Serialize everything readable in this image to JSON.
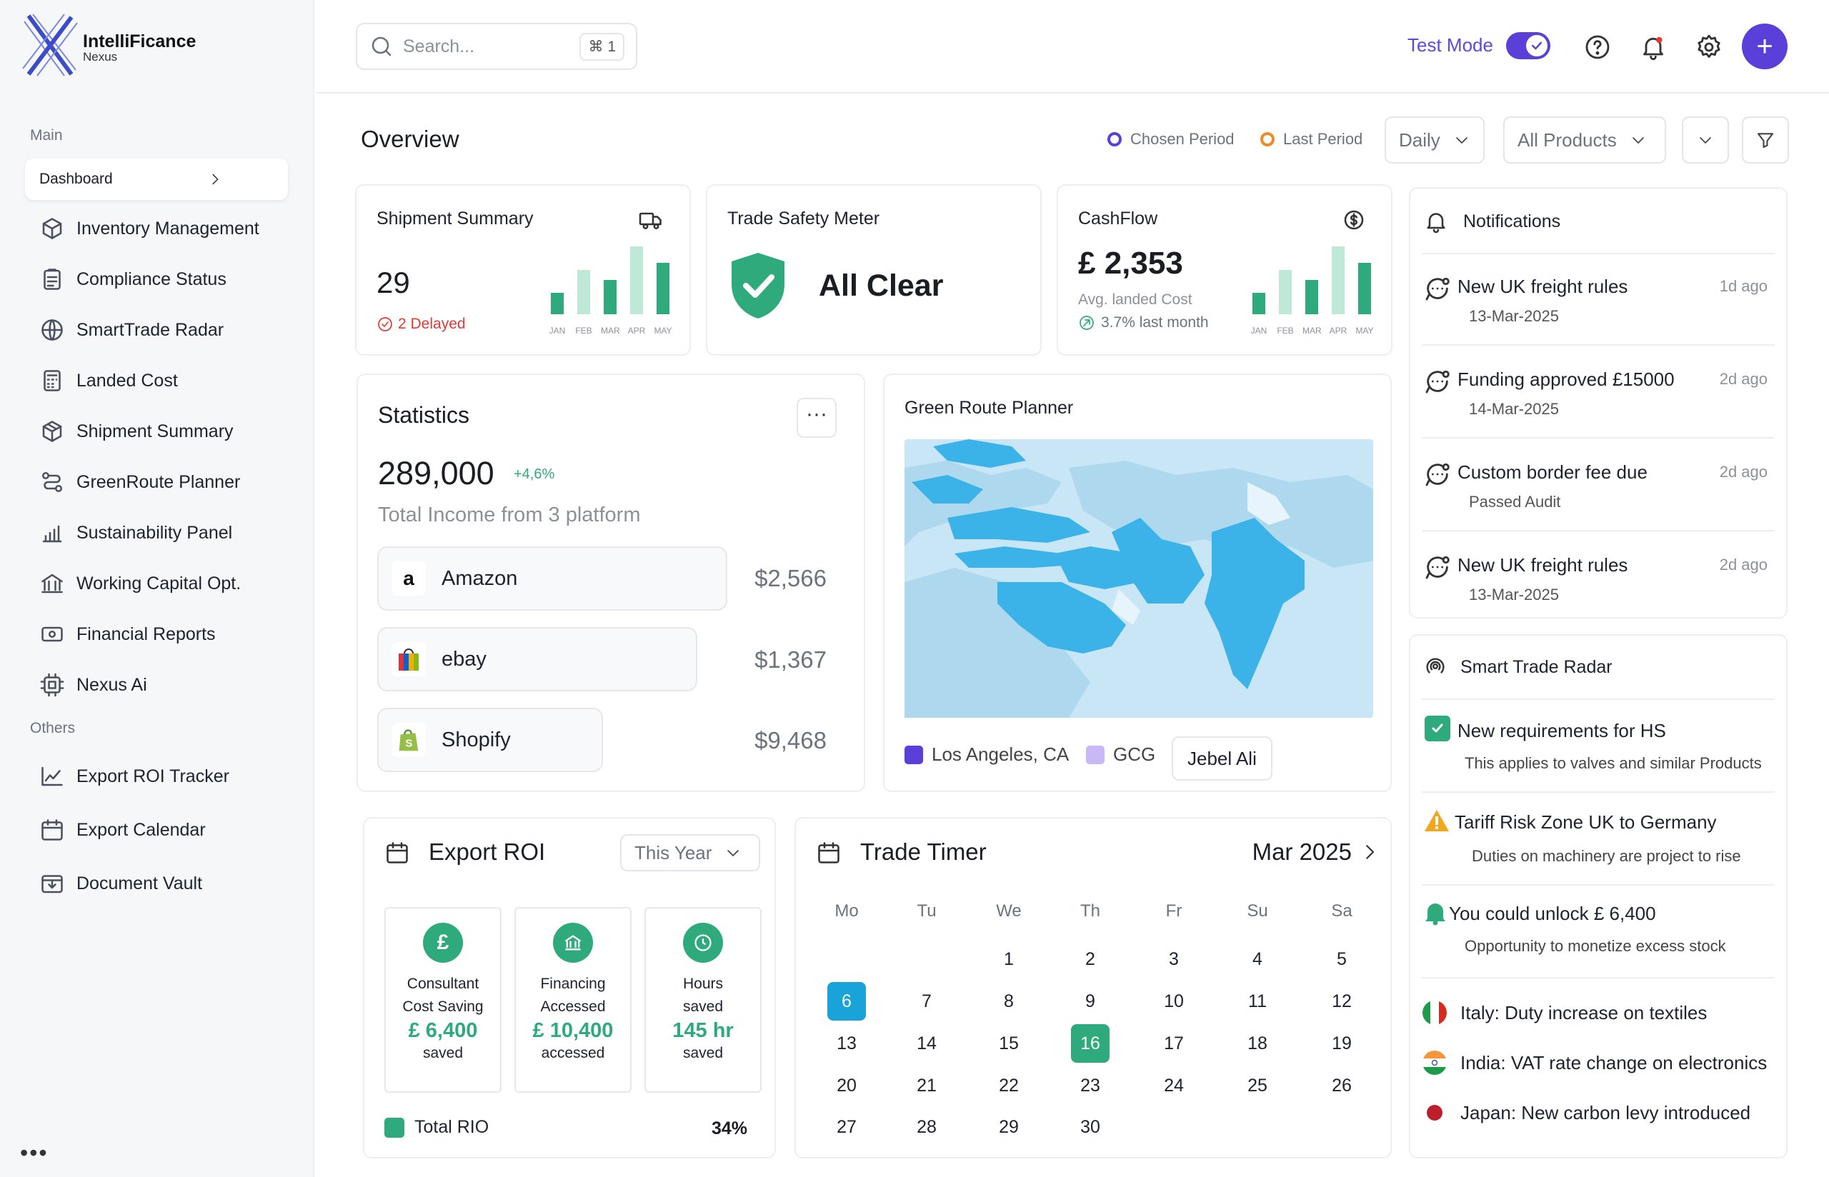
{
  "brand": {
    "name": "IntelliFicance",
    "sub": "Nexus"
  },
  "sidebar": {
    "main_label": "Main",
    "dashboard": "Dashboard",
    "items": [
      {
        "label": "Inventory Management",
        "icon": "box-icon"
      },
      {
        "label": "Compliance Status",
        "icon": "clipboard-icon"
      },
      {
        "label": "SmartTrade Radar",
        "icon": "globe-icon"
      },
      {
        "label": "Landed Cost",
        "icon": "calculator-icon"
      },
      {
        "label": "Shipment Summary",
        "icon": "package-icon"
      },
      {
        "label": "GreenRoute Planner",
        "icon": "route-icon"
      },
      {
        "label": "Sustainability Panel",
        "icon": "bar-chart-icon"
      },
      {
        "label": "Working Capital Opt.",
        "icon": "bank-icon"
      },
      {
        "label": "Financial Reports",
        "icon": "money-icon"
      },
      {
        "label": "Nexus Ai",
        "icon": "ai-icon"
      }
    ],
    "others_label": "Others",
    "others": [
      {
        "label": "Export ROI Tracker",
        "icon": "line-chart-icon"
      },
      {
        "label": "Export Calendar",
        "icon": "calendar-icon"
      },
      {
        "label": "Document Vault",
        "icon": "vault-icon"
      }
    ],
    "more": "•••"
  },
  "topbar": {
    "search_placeholder": "Search...",
    "shortcut": "⌘ 1",
    "test_mode": "Test Mode",
    "test_mode_on": true
  },
  "overview": {
    "title": "Overview",
    "chosen_period": "Chosen Period",
    "last_period": "Last Period",
    "period_select": "Daily",
    "product_select": "All Products"
  },
  "shipment": {
    "title": "Shipment Summary",
    "value": "29",
    "delayed": "2 Delayed",
    "months": [
      "JAN",
      "FEB",
      "MAR",
      "APR",
      "MAY"
    ],
    "bars": [
      30,
      62,
      48,
      95,
      72
    ]
  },
  "safety": {
    "title": "Trade Safety Meter",
    "status": "All Clear"
  },
  "cashflow": {
    "title": "CashFlow",
    "value": "£ 2,353",
    "sub": "Avg. landed Cost",
    "change": "3.7% last month",
    "months": [
      "JAN",
      "FEB",
      "MAR",
      "APR",
      "MAY"
    ],
    "bars": [
      30,
      62,
      48,
      95,
      72
    ]
  },
  "statistics": {
    "title": "Statistics",
    "total": "289,000",
    "change": "+4,6%",
    "caption": "Total Income from 3 platform",
    "platforms": [
      {
        "name": "Amazon",
        "value": "$2,566"
      },
      {
        "name": "ebay",
        "value": "$1,367"
      },
      {
        "name": "Shopify",
        "value": "$9,468"
      }
    ]
  },
  "route": {
    "title": "Green Route Planner",
    "legend": [
      "Los Angeles, CA",
      "GCG"
    ],
    "button": "Jebel Ali",
    "colors": [
      "#5b3fd9",
      "#c9b8f5"
    ]
  },
  "notifications": {
    "title": "Notifications",
    "items": [
      {
        "title": "New UK freight rules",
        "date": "13-Mar-2025",
        "ago": "1d ago"
      },
      {
        "title": "Funding approved £15000",
        "date": "14-Mar-2025",
        "ago": "2d ago"
      },
      {
        "title": "Custom border fee due",
        "date": "Passed Audit",
        "ago": "2d ago"
      },
      {
        "title": "New UK freight rules",
        "date": "13-Mar-2025",
        "ago": "2d ago"
      }
    ]
  },
  "radar": {
    "title": "Smart Trade Radar",
    "items": [
      {
        "title": "New requirements for HS",
        "desc": "This applies to valves and  similar Products"
      },
      {
        "title": "Tariff Risk Zone UK to Germany",
        "desc": "Duties on machinery are project to rise"
      },
      {
        "title": "You could unlock £ 6,400",
        "desc": "Opportunity to monetize excess stock"
      }
    ],
    "countries": [
      "Italy: Duty increase on textiles",
      "India: VAT rate change on electronics",
      "Japan: New carbon levy introduced"
    ]
  },
  "export_roi": {
    "title": "Export ROI",
    "period": "This Year",
    "boxes": [
      {
        "label1": "Consultant",
        "label2": "Cost Saving",
        "value": "£ 6,400",
        "sub": "saved",
        "icon": "pound-icon"
      },
      {
        "label1": "Financing",
        "label2": "Accessed",
        "value": "£ 10,400",
        "sub": "accessed",
        "icon": "bank-icon"
      },
      {
        "label1": "Hours",
        "label2": "saved",
        "value": "145 hr",
        "sub": "saved",
        "icon": "clock-icon"
      }
    ],
    "total_label": "Total RIO",
    "total_value": "34%"
  },
  "timer": {
    "title": "Trade Timer",
    "month": "Mar 2025",
    "weekdays": [
      "Mo",
      "Tu",
      "We",
      "Th",
      "Fr",
      "Su",
      "Sa"
    ],
    "selected": 6,
    "today": 16
  }
}
